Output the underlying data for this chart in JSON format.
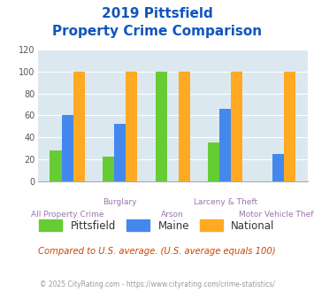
{
  "title_line1": "2019 Pittsfield",
  "title_line2": "Property Crime Comparison",
  "categories": [
    "All Property Crime",
    "Burglary",
    "Arson",
    "Larceny & Theft",
    "Motor Vehicle Theft"
  ],
  "pittsfield": [
    28,
    22,
    100,
    35,
    0
  ],
  "maine": [
    60,
    52,
    0,
    66,
    25
  ],
  "national": [
    100,
    100,
    100,
    100,
    100
  ],
  "color_pittsfield": "#66cc33",
  "color_maine": "#4488ee",
  "color_national": "#ffaa22",
  "ylim": [
    0,
    120
  ],
  "yticks": [
    0,
    20,
    40,
    60,
    80,
    100,
    120
  ],
  "bg_color": "#dce8f0",
  "note": "Compared to U.S. average. (U.S. average equals 100)",
  "footer": "© 2025 CityRating.com - https://www.cityrating.com/crime-statistics/",
  "title_color": "#1155bb",
  "label_color_top": "#9977aa",
  "label_color_bot": "#9977aa",
  "note_color": "#cc4400",
  "footer_color": "#999999",
  "top_labels": [
    "",
    "Burglary",
    "",
    "Larceny & Theft",
    ""
  ],
  "bot_labels": [
    "All Property Crime",
    "",
    "Arson",
    "",
    "Motor Vehicle Theft"
  ]
}
